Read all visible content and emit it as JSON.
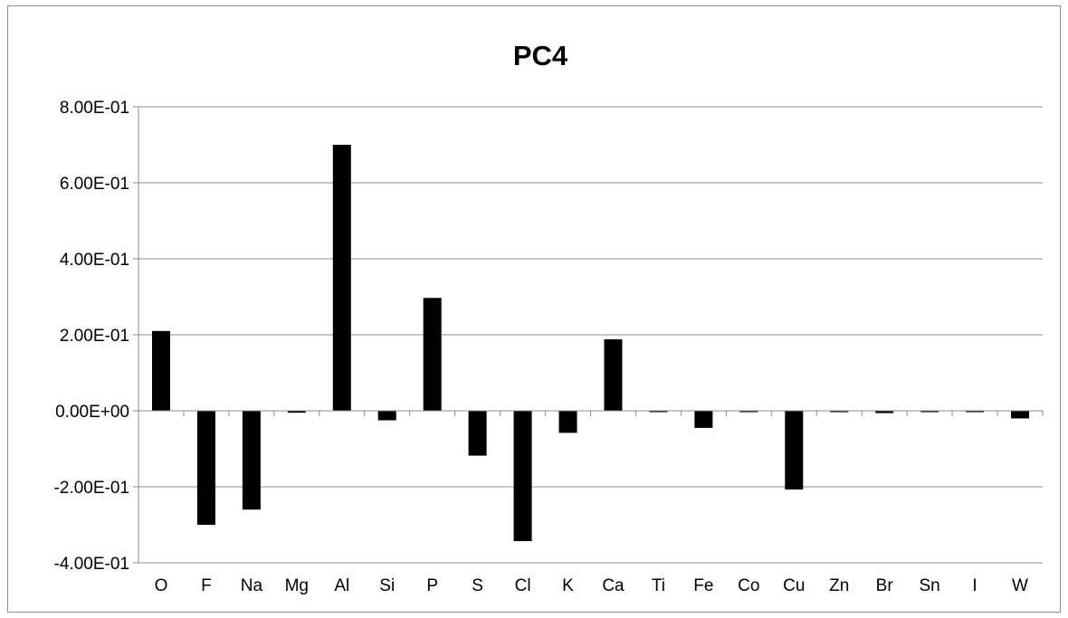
{
  "chart_data": {
    "type": "bar",
    "title": "PC4",
    "xlabel": "",
    "ylabel": "",
    "categories": [
      "O",
      "F",
      "Na",
      "Mg",
      "Al",
      "Si",
      "P",
      "S",
      "Cl",
      "K",
      "Ca",
      "Ti",
      "Fe",
      "Co",
      "Cu",
      "Zn",
      "Br",
      "Sn",
      "I",
      "W"
    ],
    "values": [
      0.21,
      -0.3,
      -0.26,
      -0.005,
      0.7,
      -0.025,
      0.297,
      -0.118,
      -0.343,
      -0.058,
      0.188,
      -0.002,
      -0.045,
      -0.002,
      -0.207,
      -0.002,
      -0.006,
      -0.002,
      -0.002,
      -0.02
    ],
    "ylim": [
      -0.4,
      0.8
    ],
    "yticks": [
      -0.4,
      -0.2,
      0.0,
      0.2,
      0.4,
      0.6,
      0.8
    ],
    "ytick_labels": [
      "-4.00E-01",
      "-2.00E-01",
      "0.00E+00",
      "2.00E-01",
      "4.00E-01",
      "6.00E-01",
      "8.00E-01"
    ],
    "grid": true,
    "bar_color": "#000000",
    "grid_color": "#8c8c8c"
  }
}
